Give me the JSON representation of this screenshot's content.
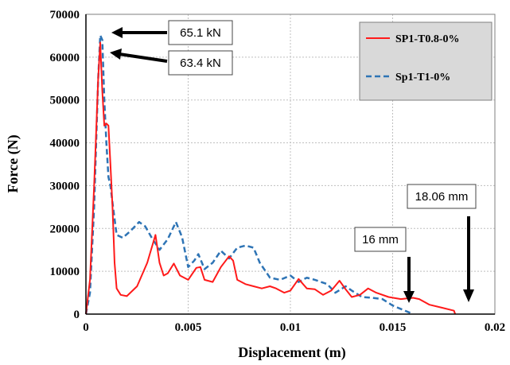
{
  "colors": {
    "series_red": "#ff1a1a",
    "series_blue": "#2e74b5",
    "grid": "#bfbfbf",
    "legend_bg": "#d9d9d9",
    "axis": "#000000"
  },
  "chart_data": {
    "type": "line",
    "title": "",
    "xlabel": "Displacement (m)",
    "ylabel": "Force (N)",
    "xlim": [
      0,
      0.02
    ],
    "ylim": [
      0,
      70000
    ],
    "xticks": [
      0,
      0.005,
      0.01,
      0.015,
      0.02
    ],
    "xtick_labels": [
      "0",
      "0.005",
      "0.01",
      "0.015",
      "0.02"
    ],
    "yticks": [
      0,
      10000,
      20000,
      30000,
      40000,
      50000,
      60000,
      70000
    ],
    "ytick_labels": [
      "0",
      "10000",
      "20000",
      "30000",
      "40000",
      "50000",
      "60000",
      "70000"
    ],
    "grid": true,
    "legend_position": "top-right",
    "series": [
      {
        "name": "SP1-T0.8-0%",
        "style": "solid",
        "color": "#ff1a1a",
        "points": [
          [
            0,
            0
          ],
          [
            0.0002,
            8000
          ],
          [
            0.0004,
            30000
          ],
          [
            0.0006,
            55000
          ],
          [
            0.0007,
            63400
          ],
          [
            0.0008,
            52000
          ],
          [
            0.0009,
            44000
          ],
          [
            0.001,
            44500
          ],
          [
            0.0011,
            44000
          ],
          [
            0.0012,
            35000
          ],
          [
            0.0013,
            25000
          ],
          [
            0.0014,
            12000
          ],
          [
            0.0015,
            6000
          ],
          [
            0.0017,
            4500
          ],
          [
            0.002,
            4200
          ],
          [
            0.0025,
            6500
          ],
          [
            0.003,
            12000
          ],
          [
            0.0034,
            18500
          ],
          [
            0.0036,
            12000
          ],
          [
            0.0038,
            9000
          ],
          [
            0.004,
            9500
          ],
          [
            0.0043,
            11800
          ],
          [
            0.0046,
            9000
          ],
          [
            0.005,
            8000
          ],
          [
            0.0054,
            10800
          ],
          [
            0.0056,
            11000
          ],
          [
            0.0058,
            8000
          ],
          [
            0.0062,
            7500
          ],
          [
            0.0066,
            11000
          ],
          [
            0.007,
            13500
          ],
          [
            0.0072,
            12500
          ],
          [
            0.0074,
            8000
          ],
          [
            0.0078,
            7000
          ],
          [
            0.0082,
            6500
          ],
          [
            0.0086,
            6000
          ],
          [
            0.009,
            6500
          ],
          [
            0.0093,
            6000
          ],
          [
            0.0097,
            5000
          ],
          [
            0.01,
            5500
          ],
          [
            0.0104,
            8200
          ],
          [
            0.0108,
            6000
          ],
          [
            0.0112,
            5800
          ],
          [
            0.0116,
            4500
          ],
          [
            0.012,
            5500
          ],
          [
            0.0124,
            7800
          ],
          [
            0.0127,
            5800
          ],
          [
            0.013,
            4000
          ],
          [
            0.0134,
            4500
          ],
          [
            0.0138,
            6000
          ],
          [
            0.0142,
            5000
          ],
          [
            0.0148,
            4000
          ],
          [
            0.0154,
            3500
          ],
          [
            0.016,
            3800
          ],
          [
            0.0163,
            3500
          ],
          [
            0.0168,
            2200
          ],
          [
            0.0174,
            1500
          ],
          [
            0.018,
            800
          ],
          [
            0.01806,
            0
          ]
        ]
      },
      {
        "name": "Sp1-T1-0%",
        "style": "dashed",
        "color": "#2e74b5",
        "points": [
          [
            0,
            0
          ],
          [
            0.0002,
            5000
          ],
          [
            0.0004,
            25000
          ],
          [
            0.0006,
            55000
          ],
          [
            0.0007,
            65100
          ],
          [
            0.0008,
            64000
          ],
          [
            0.0009,
            50000
          ],
          [
            0.001,
            40000
          ],
          [
            0.0011,
            32000
          ],
          [
            0.0012,
            30000
          ],
          [
            0.0013,
            26000
          ],
          [
            0.0015,
            18500
          ],
          [
            0.0018,
            17800
          ],
          [
            0.0022,
            19500
          ],
          [
            0.0026,
            21500
          ],
          [
            0.0029,
            20500
          ],
          [
            0.0032,
            18000
          ],
          [
            0.0036,
            15000
          ],
          [
            0.004,
            17500
          ],
          [
            0.0044,
            21500
          ],
          [
            0.0047,
            18000
          ],
          [
            0.005,
            11000
          ],
          [
            0.0053,
            12500
          ],
          [
            0.0055,
            14000
          ],
          [
            0.0058,
            10500
          ],
          [
            0.0062,
            12000
          ],
          [
            0.0066,
            14800
          ],
          [
            0.007,
            13000
          ],
          [
            0.0074,
            15500
          ],
          [
            0.0078,
            16000
          ],
          [
            0.0082,
            15500
          ],
          [
            0.0085,
            12000
          ],
          [
            0.009,
            8500
          ],
          [
            0.0095,
            8000
          ],
          [
            0.01,
            9000
          ],
          [
            0.0104,
            7500
          ],
          [
            0.0108,
            8500
          ],
          [
            0.0112,
            8000
          ],
          [
            0.0118,
            7000
          ],
          [
            0.0122,
            5000
          ],
          [
            0.0127,
            6500
          ],
          [
            0.013,
            5500
          ],
          [
            0.0135,
            4000
          ],
          [
            0.014,
            3800
          ],
          [
            0.0145,
            3500
          ],
          [
            0.015,
            2000
          ],
          [
            0.0155,
            1000
          ],
          [
            0.016,
            0
          ]
        ]
      }
    ],
    "annotations": [
      {
        "text": "65.1 kN",
        "x": 0.0007,
        "y": 65100
      },
      {
        "text": "63.4 kN",
        "x": 0.0007,
        "y": 63400
      },
      {
        "text": "16 mm",
        "x": 0.016,
        "y": 0
      },
      {
        "text": "18.06 mm",
        "x": 0.01806,
        "y": 0
      }
    ]
  }
}
